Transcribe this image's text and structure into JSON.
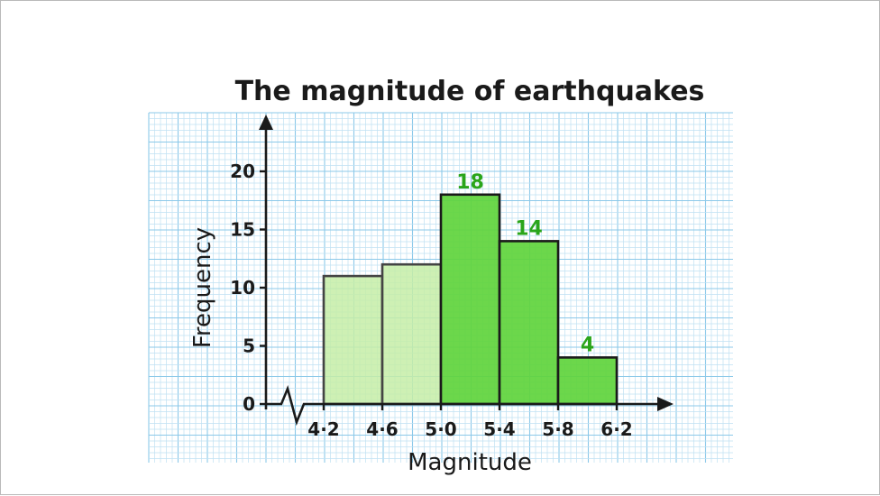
{
  "chart_data": {
    "type": "bar",
    "title": "The magnitude of earthquakes",
    "xlabel": "Magnitude",
    "ylabel": "Frequency",
    "x_ticks": [
      "4·2",
      "4·6",
      "5·0",
      "5·4",
      "5·8",
      "6·2"
    ],
    "y_ticks": [
      "0",
      "5",
      "10",
      "15",
      "20"
    ],
    "ylim": [
      0,
      22
    ],
    "xlim": [
      4.2,
      6.2
    ],
    "axis_break": true,
    "grid": true,
    "bars": [
      {
        "x0": 4.2,
        "x1": 4.6,
        "value": 11,
        "label": "",
        "highlight": false
      },
      {
        "x0": 4.6,
        "x1": 5.0,
        "value": 12,
        "label": "",
        "highlight": false
      },
      {
        "x0": 5.0,
        "x1": 5.4,
        "value": 18,
        "label": "18",
        "highlight": true
      },
      {
        "x0": 5.4,
        "x1": 5.8,
        "value": 14,
        "label": "14",
        "highlight": true
      },
      {
        "x0": 5.8,
        "x1": 6.2,
        "value": 4,
        "label": "4",
        "highlight": true
      }
    ],
    "colors": {
      "light_bar": "#c5eda7",
      "dark_bar": "#5fd43c",
      "data_label": "#2aa51a",
      "grid_minor": "#bfe1f3",
      "grid_major": "#8cc9e9"
    }
  }
}
